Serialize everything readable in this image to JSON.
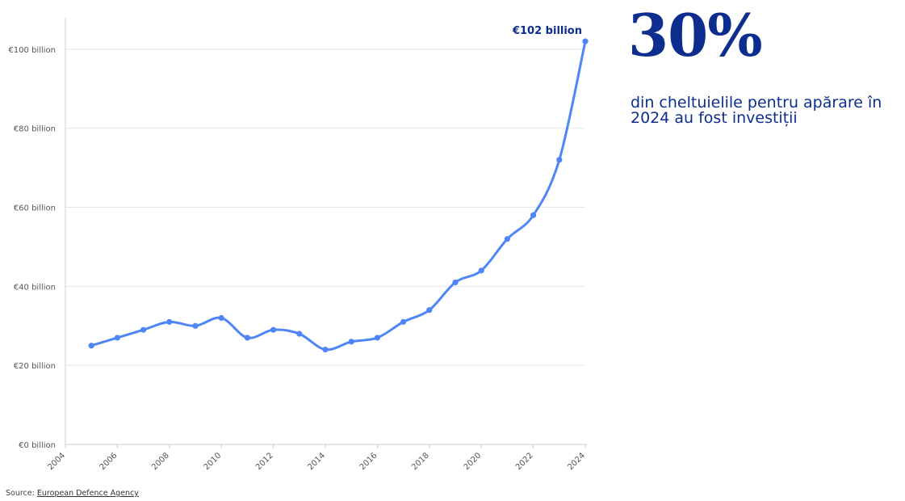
{
  "headline": {
    "stat": "30%",
    "description": "din cheltuielile pentru apărare în 2024 au fost investiții"
  },
  "source": {
    "prefix": "Source:",
    "link_text": "European Defence Agency"
  },
  "colors": {
    "line": "#4f86f7",
    "accent": "#0d2d8f",
    "grid": "#e6e6e6",
    "axis": "#cccccc"
  },
  "chart_data": {
    "type": "line",
    "x_label": "",
    "y_label": "",
    "grid": true,
    "xlim": [
      2004,
      2024
    ],
    "ylim": [
      0,
      110
    ],
    "x_ticks": [
      2004,
      2006,
      2008,
      2010,
      2012,
      2014,
      2016,
      2018,
      2020,
      2022,
      2024
    ],
    "x_tick_labels": [
      "2004",
      "2006",
      "2008",
      "2010",
      "2012",
      "2014",
      "2016",
      "2018",
      "2020",
      "2022",
      "2024"
    ],
    "y_ticks": [
      0,
      20,
      40,
      60,
      80,
      100
    ],
    "y_tick_labels": [
      "€0 billion",
      "€20 billion",
      "€40 billion",
      "€60 billion",
      "€80 billion",
      "€100 billion"
    ],
    "series": [
      {
        "x": [
          2005,
          2006,
          2007,
          2008,
          2009,
          2010,
          2011,
          2012,
          2013,
          2014,
          2015,
          2016,
          2017,
          2018,
          2019,
          2020,
          2021,
          2022,
          2023,
          2024
        ],
        "values": [
          25,
          27,
          29,
          31,
          30,
          32,
          27,
          29,
          28,
          24,
          26,
          27,
          31,
          34,
          41,
          44,
          52,
          58,
          72,
          102
        ]
      }
    ],
    "annotations": [
      {
        "x": 2024,
        "y": 102,
        "text": "€102 billion"
      }
    ]
  }
}
